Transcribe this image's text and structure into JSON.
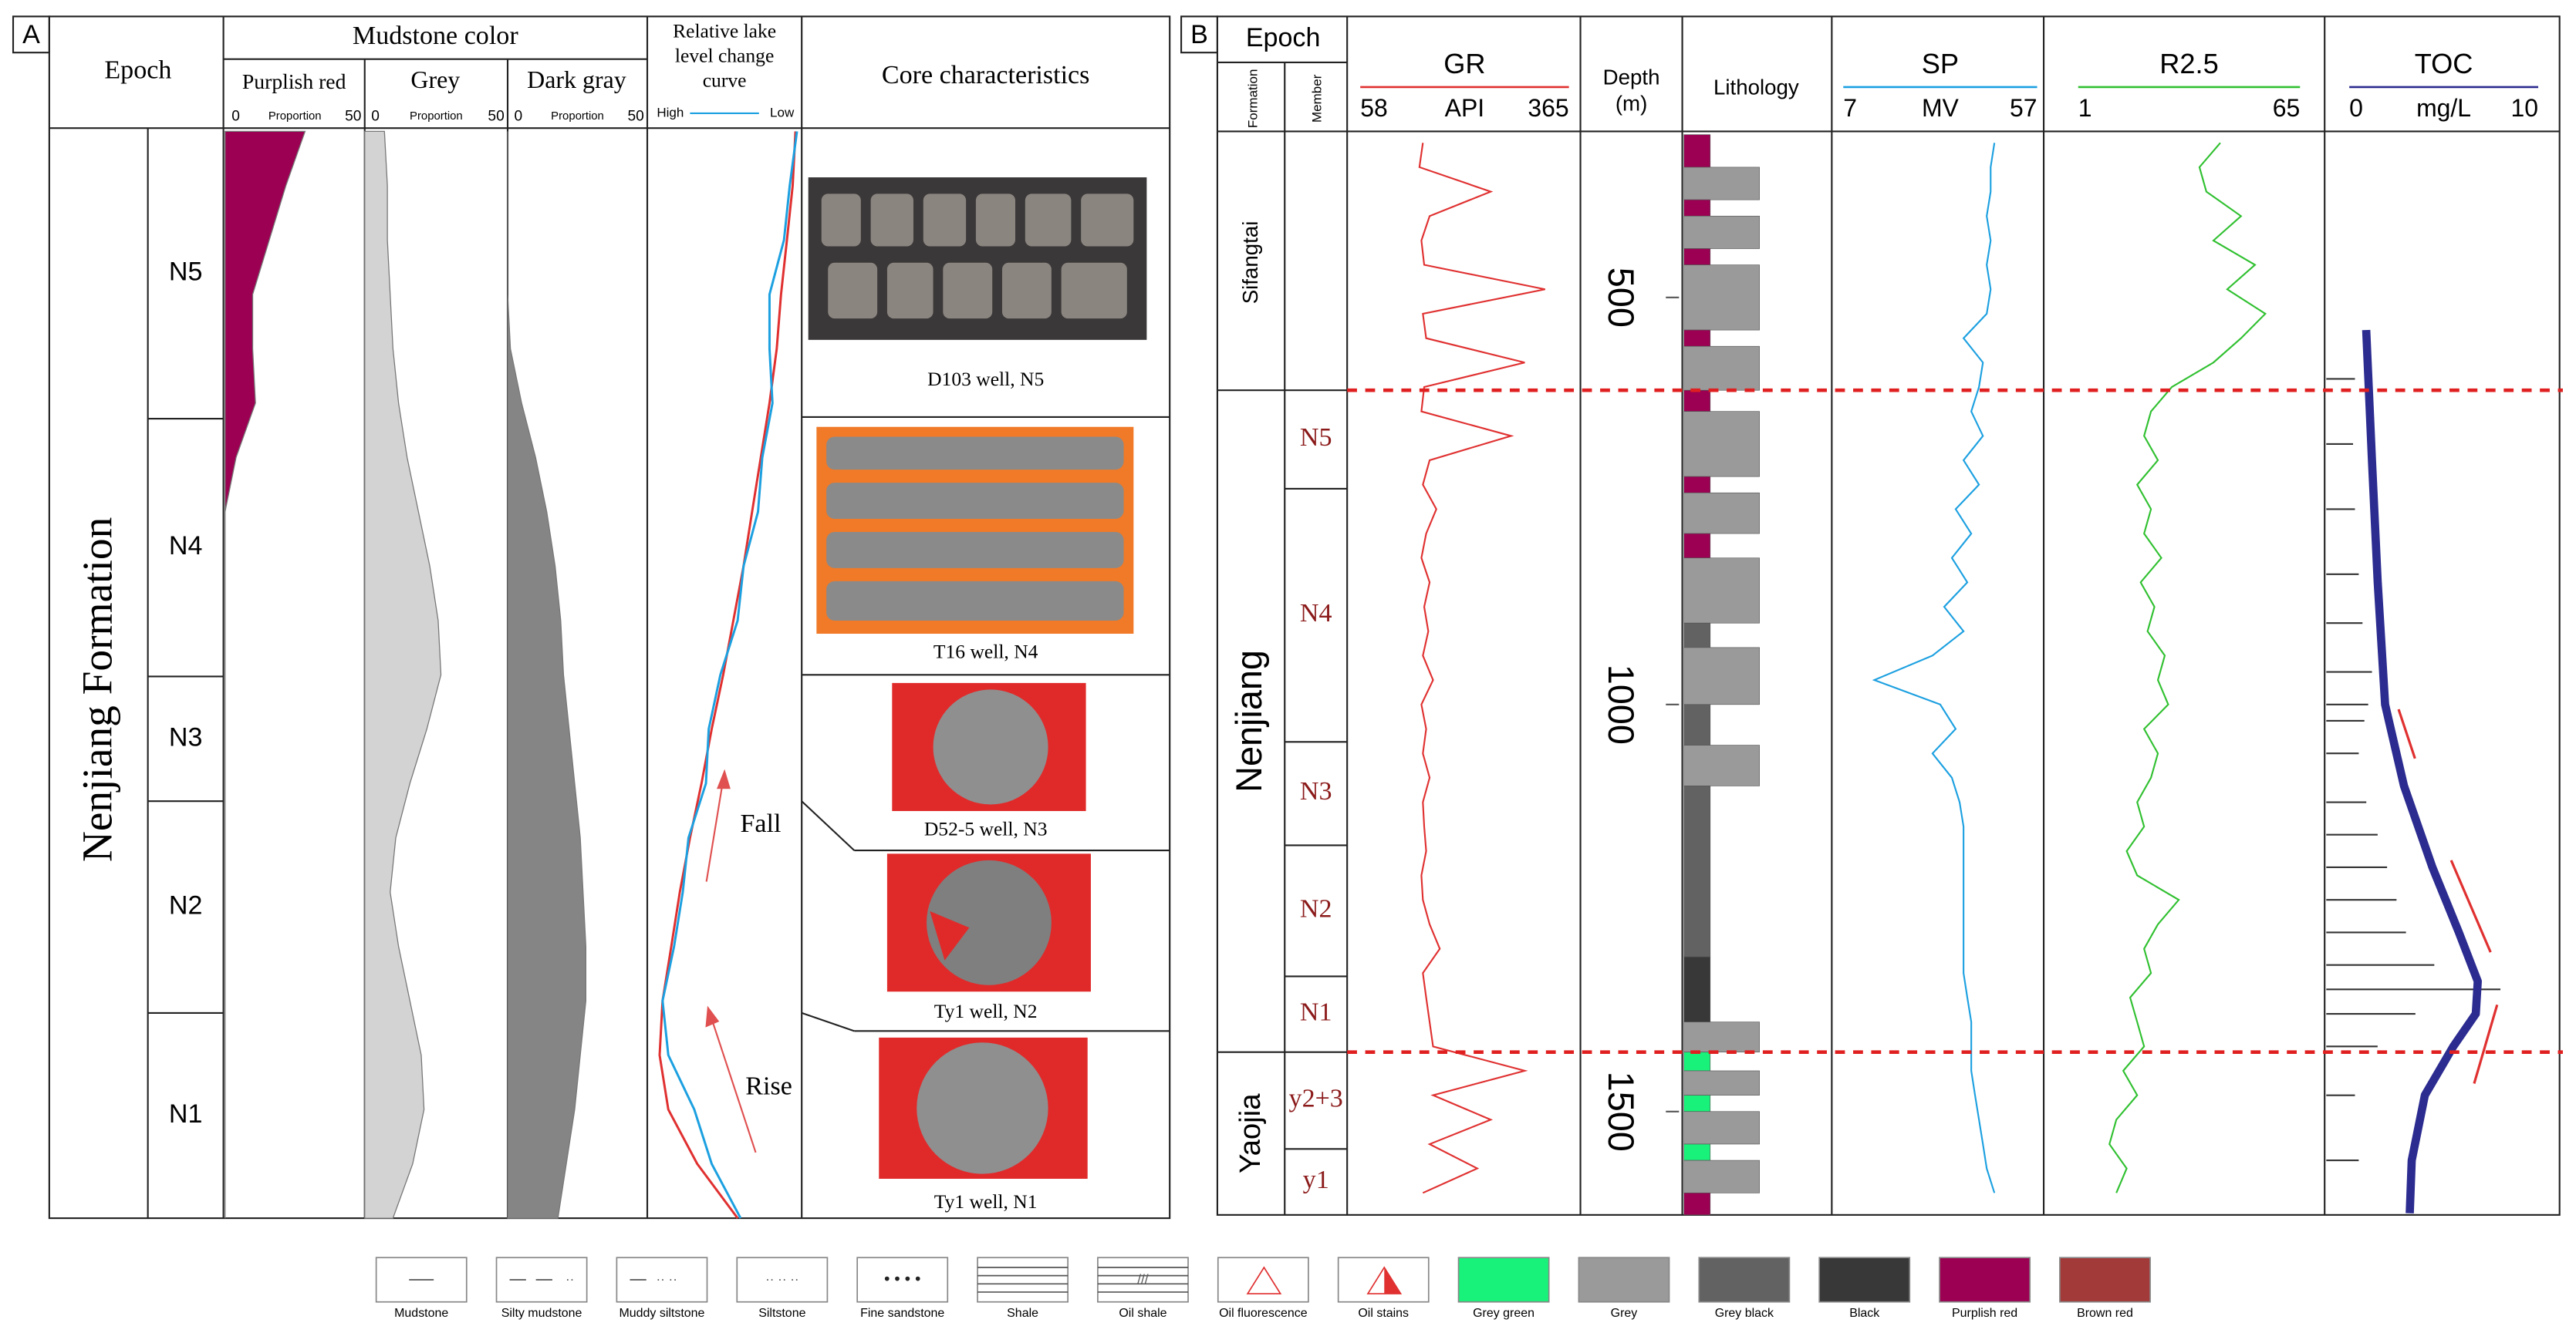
{
  "panel_a": {
    "label": "A",
    "headers": {
      "epoch": "Epoch",
      "mudstone_color": "Mudstone color",
      "purplish_red": "Purplish red",
      "grey": "Grey",
      "dark_gray": "Dark gray",
      "lake_1": "Relative lake",
      "lake_2": "level change",
      "lake_3": "curve",
      "core": "Core characteristics"
    },
    "proportion": {
      "label": "Proportion",
      "min": 0,
      "max": 50
    },
    "high": "High",
    "low": "Low",
    "formation": "Nenjiang Formation",
    "members": [
      "N5",
      "N4",
      "N3",
      "N2",
      "N1"
    ],
    "cores": [
      "D103 well, N5",
      "T16 well, N4",
      "D52-5 well, N3",
      "Ty1 well,  N2",
      "Ty1 well,  N1"
    ],
    "fall": "Fall",
    "rise": "Rise",
    "purplish_red": {
      "color": "#9b0052",
      "values": [
        29,
        22,
        16,
        10,
        10,
        11,
        4,
        0,
        0,
        0,
        0,
        0,
        0,
        0,
        0,
        0,
        0,
        0,
        0,
        0,
        0
      ]
    },
    "grey": {
      "color": "#d3d3d3",
      "values": [
        7,
        8,
        8,
        9,
        10,
        12,
        15,
        19,
        23,
        26,
        27,
        22,
        16,
        11,
        9,
        12,
        16,
        20,
        21,
        17,
        10
      ]
    },
    "dark_gray": {
      "color": "#858585",
      "values": [
        0,
        0,
        0,
        0,
        1,
        5,
        10,
        14,
        17,
        19,
        20,
        22,
        24,
        26,
        27,
        28,
        28,
        26,
        24,
        21,
        18
      ]
    },
    "lake_red": {
      "color": "#e03030",
      "values": [
        98,
        96,
        92,
        88,
        85,
        80,
        74,
        68,
        62,
        55,
        48,
        40,
        33,
        25,
        18,
        12,
        6,
        4,
        10,
        30,
        58
      ]
    },
    "lake_blue": {
      "color": "#1ca0e0",
      "values": [
        99,
        94,
        90,
        80,
        80,
        82,
        75,
        72,
        62,
        58,
        46,
        38,
        36,
        24,
        20,
        14,
        6,
        10,
        28,
        40,
        60
      ]
    }
  },
  "panel_b": {
    "label": "B",
    "epoch": "Epoch",
    "formation": "Formation",
    "member": "Member",
    "depth_title_1": "Depth",
    "depth_title_2": "(m)",
    "lithology": "Lithology",
    "ylim": [
      300,
      1627
    ],
    "depth_ticks": [
      500,
      1000,
      1500
    ],
    "formations": [
      {
        "name": "Sifangtai",
        "top": 300,
        "bottom": 614
      },
      {
        "name": "Nenjiang",
        "top": 614,
        "bottom": 1427
      },
      {
        "name": "Yaojia",
        "top": 1427,
        "bottom": 1627
      }
    ],
    "members": [
      {
        "name": "N5",
        "top": 614,
        "bottom": 735
      },
      {
        "name": "N4",
        "top": 735,
        "bottom": 1046
      },
      {
        "name": "N3",
        "top": 1046,
        "bottom": 1173
      },
      {
        "name": "N2",
        "top": 1173,
        "bottom": 1334
      },
      {
        "name": "N1",
        "top": 1334,
        "bottom": 1427
      },
      {
        "name": "y2+3",
        "top": 1427,
        "bottom": 1546
      },
      {
        "name": "y1",
        "top": 1546,
        "bottom": 1627
      }
    ],
    "boundaries": [
      614,
      1427
    ],
    "depths": [
      310,
      340,
      370,
      400,
      430,
      460,
      490,
      520,
      550,
      580,
      610,
      640,
      670,
      700,
      730,
      760,
      790,
      820,
      850,
      880,
      910,
      940,
      970,
      1000,
      1030,
      1060,
      1090,
      1120,
      1150,
      1180,
      1210,
      1240,
      1270,
      1300,
      1330,
      1360,
      1390,
      1420,
      1450,
      1480,
      1510,
      1540,
      1570,
      1600
    ],
    "logs": [
      {
        "name": "GR",
        "unit": "API",
        "xlim": [
          58,
          365
        ],
        "color": "#e03030",
        "values": [
          150,
          145,
          250,
          160,
          148,
          152,
          330,
          150,
          155,
          300,
          152,
          148,
          280,
          160,
          150,
          170,
          155,
          148,
          160,
          152,
          158,
          150,
          165,
          148,
          155,
          150,
          160,
          150,
          152,
          155,
          148,
          150,
          160,
          175,
          150,
          155,
          160,
          165,
          300,
          165,
          250,
          160,
          230,
          150
        ]
      },
      {
        "name": "SP",
        "unit": "MV",
        "xlim": [
          7,
          57
        ],
        "color": "#1ca0e0",
        "values": [
          46,
          45,
          45,
          44,
          45,
          44,
          45,
          44,
          38,
          43,
          42,
          40,
          43,
          38,
          42,
          36,
          40,
          35,
          39,
          33,
          38,
          30,
          15,
          32,
          36,
          30,
          35,
          37,
          38,
          38,
          38,
          38,
          38,
          38,
          38,
          39,
          40,
          40,
          40,
          41,
          42,
          43,
          44,
          46
        ]
      },
      {
        "name": "R2.5",
        "xlim": [
          1,
          65
        ],
        "color": "#30c030",
        "values": [
          42,
          36,
          38,
          48,
          40,
          52,
          44,
          55,
          48,
          40,
          28,
          22,
          20,
          24,
          18,
          22,
          20,
          25,
          19,
          23,
          21,
          26,
          24,
          27,
          20,
          24,
          22,
          18,
          20,
          15,
          18,
          30,
          24,
          20,
          22,
          16,
          18,
          20,
          14,
          18,
          12,
          10,
          15,
          12
        ]
      },
      {
        "name": "TOC",
        "unit": "mg/L",
        "xlim": [
          0,
          10
        ],
        "color": "#2b2b90"
      }
    ],
    "toc_curve": {
      "depths": [
        540,
        700,
        850,
        1000,
        1100,
        1200,
        1280,
        1340,
        1380,
        1420,
        1480,
        1560,
        1625
      ],
      "values": [
        0.9,
        1.2,
        1.5,
        1.9,
        2.9,
        4.4,
        5.8,
        6.8,
        6.7,
        5.5,
        4.0,
        3.3,
        3.2
      ]
    },
    "toc_samples": {
      "color": "#333333",
      "depths": [
        600,
        680,
        760,
        840,
        900,
        960,
        1000,
        1020,
        1060,
        1120,
        1160,
        1200,
        1240,
        1280,
        1320,
        1350,
        1380,
        1420,
        1480,
        1560
      ],
      "values": [
        0.3,
        0.2,
        0.3,
        0.5,
        0.7,
        1.2,
        1.0,
        0.8,
        0.5,
        0.9,
        1.5,
        2.0,
        2.5,
        3.0,
        4.5,
        8.0,
        3.5,
        1.5,
        0.3,
        0.5
      ]
    },
    "lithology_intervals": [
      [
        300,
        340,
        13
      ],
      [
        340,
        380,
        10
      ],
      [
        380,
        400,
        13
      ],
      [
        400,
        440,
        10
      ],
      [
        440,
        460,
        13
      ],
      [
        460,
        540,
        10
      ],
      [
        540,
        560,
        13
      ],
      [
        560,
        614,
        10
      ],
      [
        614,
        640,
        13
      ],
      [
        640,
        720,
        10
      ],
      [
        720,
        740,
        13
      ],
      [
        740,
        790,
        10
      ],
      [
        790,
        820,
        13
      ],
      [
        820,
        900,
        10
      ],
      [
        900,
        930,
        11
      ],
      [
        930,
        1000,
        10
      ],
      [
        1000,
        1050,
        11
      ],
      [
        1050,
        1100,
        10
      ],
      [
        1100,
        1310,
        11
      ],
      [
        1310,
        1390,
        12
      ],
      [
        1390,
        1427,
        10
      ],
      [
        1427,
        1450,
        9
      ],
      [
        1450,
        1480,
        10
      ],
      [
        1480,
        1500,
        9
      ],
      [
        1500,
        1540,
        10
      ],
      [
        1540,
        1560,
        9
      ],
      [
        1560,
        1600,
        10
      ],
      [
        1600,
        1627,
        13
      ]
    ]
  },
  "legend": [
    {
      "label": "Mudstone"
    },
    {
      "label": "Silty mudstone"
    },
    {
      "label": "Muddy siltstone"
    },
    {
      "label": "Siltstone"
    },
    {
      "label": "Fine sandstone"
    },
    {
      "label": "Shale"
    },
    {
      "label": "Oil shale"
    },
    {
      "label": "Oil fluorescence"
    },
    {
      "label": "Oil stains"
    },
    {
      "label": "Grey green",
      "color": "#19f27a"
    },
    {
      "label": "Grey",
      "color": "#9a9a9a"
    },
    {
      "label": "Grey black",
      "color": "#626262"
    },
    {
      "label": "Black",
      "color": "#383838"
    },
    {
      "label": "Purplish red",
      "color": "#9b0052"
    },
    {
      "label": "Brown red",
      "color": "#a33a3a"
    }
  ]
}
